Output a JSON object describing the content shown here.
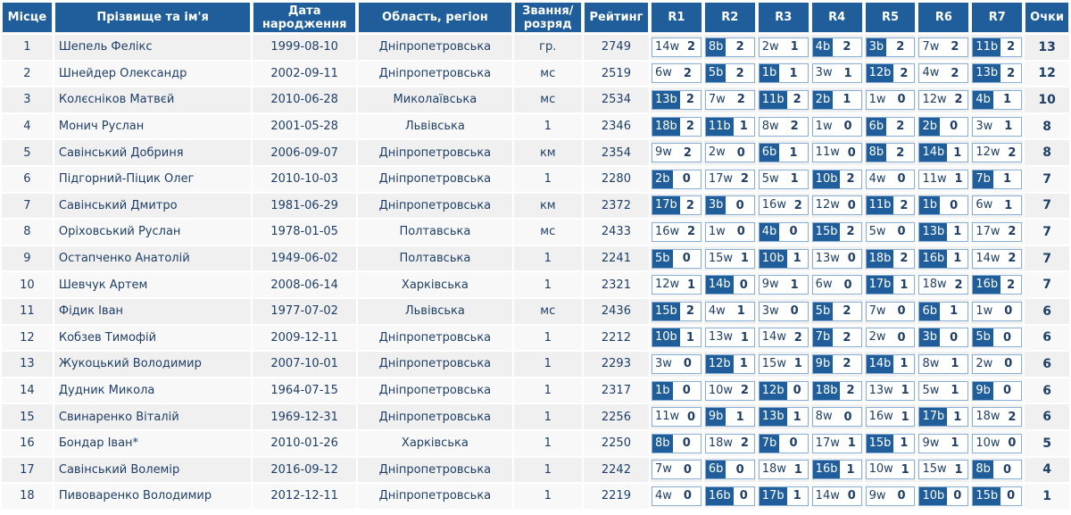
{
  "headers": {
    "place": "Місце",
    "name": "Прізвище та ім'я",
    "birth": "Дата народження",
    "region": "Область, регіон",
    "rank": "Звання/ розряд",
    "rating": "Рейтинг",
    "rounds": [
      "R1",
      "R2",
      "R3",
      "R4",
      "R5",
      "R6",
      "R7"
    ],
    "points": "Очки"
  },
  "rows": [
    {
      "place": "1",
      "name": "Шепель Фелікс",
      "birth": "1999-08-10",
      "region": "Дніпропетровська",
      "rank": "гр.",
      "rating": "2749",
      "points": "13",
      "rounds": [
        {
          "opp": "14w",
          "res": "2",
          "color": "w"
        },
        {
          "opp": "8b",
          "res": "2",
          "color": "b"
        },
        {
          "opp": "2w",
          "res": "1",
          "color": "w"
        },
        {
          "opp": "4b",
          "res": "2",
          "color": "b"
        },
        {
          "opp": "3b",
          "res": "2",
          "color": "b"
        },
        {
          "opp": "7w",
          "res": "2",
          "color": "w"
        },
        {
          "opp": "11b",
          "res": "2",
          "color": "b"
        }
      ]
    },
    {
      "place": "2",
      "name": "Шнейдер Олександр",
      "birth": "2002-09-11",
      "region": "Дніпропетровська",
      "rank": "мс",
      "rating": "2519",
      "points": "12",
      "rounds": [
        {
          "opp": "6w",
          "res": "2",
          "color": "w"
        },
        {
          "opp": "5b",
          "res": "2",
          "color": "b"
        },
        {
          "opp": "1b",
          "res": "1",
          "color": "b"
        },
        {
          "opp": "3w",
          "res": "1",
          "color": "w"
        },
        {
          "opp": "12b",
          "res": "2",
          "color": "b"
        },
        {
          "opp": "4w",
          "res": "2",
          "color": "w"
        },
        {
          "opp": "13b",
          "res": "2",
          "color": "b"
        }
      ]
    },
    {
      "place": "3",
      "name": "Колєсніков Матвєй",
      "birth": "2010-06-28",
      "region": "Миколаївська",
      "rank": "мс",
      "rating": "2534",
      "points": "10",
      "rounds": [
        {
          "opp": "13b",
          "res": "2",
          "color": "b"
        },
        {
          "opp": "7w",
          "res": "2",
          "color": "w"
        },
        {
          "opp": "11b",
          "res": "2",
          "color": "b"
        },
        {
          "opp": "2b",
          "res": "1",
          "color": "b"
        },
        {
          "opp": "1w",
          "res": "0",
          "color": "w"
        },
        {
          "opp": "12w",
          "res": "2",
          "color": "w"
        },
        {
          "opp": "4b",
          "res": "1",
          "color": "b"
        }
      ]
    },
    {
      "place": "4",
      "name": "Монич Руслан",
      "birth": "2001-05-28",
      "region": "Львівська",
      "rank": "1",
      "rating": "2346",
      "points": "8",
      "rounds": [
        {
          "opp": "18b",
          "res": "2",
          "color": "b"
        },
        {
          "opp": "11b",
          "res": "1",
          "color": "b"
        },
        {
          "opp": "8w",
          "res": "2",
          "color": "w"
        },
        {
          "opp": "1w",
          "res": "0",
          "color": "w"
        },
        {
          "opp": "6b",
          "res": "2",
          "color": "b"
        },
        {
          "opp": "2b",
          "res": "0",
          "color": "b"
        },
        {
          "opp": "3w",
          "res": "1",
          "color": "w"
        }
      ]
    },
    {
      "place": "5",
      "name": "Савінський Добриня",
      "birth": "2006-09-07",
      "region": "Дніпропетровська",
      "rank": "км",
      "rating": "2354",
      "points": "8",
      "rounds": [
        {
          "opp": "9w",
          "res": "2",
          "color": "w"
        },
        {
          "opp": "2w",
          "res": "0",
          "color": "w"
        },
        {
          "opp": "6b",
          "res": "1",
          "color": "b"
        },
        {
          "opp": "11w",
          "res": "0",
          "color": "w"
        },
        {
          "opp": "8b",
          "res": "2",
          "color": "b"
        },
        {
          "opp": "14b",
          "res": "1",
          "color": "b"
        },
        {
          "opp": "12w",
          "res": "2",
          "color": "w"
        }
      ]
    },
    {
      "place": "6",
      "name": "Підгорний-Піцик Олег",
      "birth": "2010-10-03",
      "region": "Дніпропетровська",
      "rank": "1",
      "rating": "2280",
      "points": "7",
      "rounds": [
        {
          "opp": "2b",
          "res": "0",
          "color": "b"
        },
        {
          "opp": "17w",
          "res": "2",
          "color": "w"
        },
        {
          "opp": "5w",
          "res": "1",
          "color": "w"
        },
        {
          "opp": "10b",
          "res": "2",
          "color": "b"
        },
        {
          "opp": "4w",
          "res": "0",
          "color": "w"
        },
        {
          "opp": "11w",
          "res": "1",
          "color": "w"
        },
        {
          "opp": "7b",
          "res": "1",
          "color": "b"
        }
      ]
    },
    {
      "place": "7",
      "name": "Савінський Дмитро",
      "birth": "1981-06-29",
      "region": "Дніпропетровська",
      "rank": "км",
      "rating": "2372",
      "points": "7",
      "rounds": [
        {
          "opp": "17b",
          "res": "2",
          "color": "b"
        },
        {
          "opp": "3b",
          "res": "0",
          "color": "b"
        },
        {
          "opp": "16w",
          "res": "2",
          "color": "w"
        },
        {
          "opp": "12w",
          "res": "0",
          "color": "w"
        },
        {
          "opp": "11b",
          "res": "2",
          "color": "b"
        },
        {
          "opp": "1b",
          "res": "0",
          "color": "b"
        },
        {
          "opp": "6w",
          "res": "1",
          "color": "w"
        }
      ]
    },
    {
      "place": "8",
      "name": "Оріховський Руслан",
      "birth": "1978-01-05",
      "region": "Полтавська",
      "rank": "мс",
      "rating": "2433",
      "points": "7",
      "rounds": [
        {
          "opp": "16w",
          "res": "2",
          "color": "w"
        },
        {
          "opp": "1w",
          "res": "0",
          "color": "w"
        },
        {
          "opp": "4b",
          "res": "0",
          "color": "b"
        },
        {
          "opp": "15b",
          "res": "2",
          "color": "b"
        },
        {
          "opp": "5w",
          "res": "0",
          "color": "w"
        },
        {
          "opp": "13b",
          "res": "1",
          "color": "b"
        },
        {
          "opp": "17w",
          "res": "2",
          "color": "w"
        }
      ]
    },
    {
      "place": "9",
      "name": "Остапченко Анатолій",
      "birth": "1949-06-02",
      "region": "Полтавська",
      "rank": "1",
      "rating": "2241",
      "points": "7",
      "rounds": [
        {
          "opp": "5b",
          "res": "0",
          "color": "b"
        },
        {
          "opp": "15w",
          "res": "1",
          "color": "w"
        },
        {
          "opp": "10b",
          "res": "1",
          "color": "b"
        },
        {
          "opp": "13w",
          "res": "0",
          "color": "w"
        },
        {
          "opp": "18b",
          "res": "2",
          "color": "b"
        },
        {
          "opp": "16b",
          "res": "1",
          "color": "b"
        },
        {
          "opp": "14w",
          "res": "2",
          "color": "w"
        }
      ]
    },
    {
      "place": "10",
      "name": "Шевчук Артем",
      "birth": "2008-06-14",
      "region": "Харківська",
      "rank": "1",
      "rating": "2321",
      "points": "7",
      "rounds": [
        {
          "opp": "12w",
          "res": "1",
          "color": "w"
        },
        {
          "opp": "14b",
          "res": "0",
          "color": "b"
        },
        {
          "opp": "9w",
          "res": "1",
          "color": "w"
        },
        {
          "opp": "6w",
          "res": "0",
          "color": "w"
        },
        {
          "opp": "17b",
          "res": "1",
          "color": "b"
        },
        {
          "opp": "18w",
          "res": "2",
          "color": "w"
        },
        {
          "opp": "16b",
          "res": "2",
          "color": "b"
        }
      ]
    },
    {
      "place": "11",
      "name": "Фідик Іван",
      "birth": "1977-07-02",
      "region": "Львівська",
      "rank": "мс",
      "rating": "2436",
      "points": "6",
      "rounds": [
        {
          "opp": "15b",
          "res": "2",
          "color": "b"
        },
        {
          "opp": "4w",
          "res": "1",
          "color": "w"
        },
        {
          "opp": "3w",
          "res": "0",
          "color": "w"
        },
        {
          "opp": "5b",
          "res": "2",
          "color": "b"
        },
        {
          "opp": "7w",
          "res": "0",
          "color": "w"
        },
        {
          "opp": "6b",
          "res": "1",
          "color": "b"
        },
        {
          "opp": "1w",
          "res": "0",
          "color": "w"
        }
      ]
    },
    {
      "place": "12",
      "name": "Кобзев Тимофій",
      "birth": "2009-12-11",
      "region": "Дніпропетровська",
      "rank": "1",
      "rating": "2212",
      "points": "6",
      "rounds": [
        {
          "opp": "10b",
          "res": "1",
          "color": "b"
        },
        {
          "opp": "13w",
          "res": "1",
          "color": "w"
        },
        {
          "opp": "14w",
          "res": "2",
          "color": "w"
        },
        {
          "opp": "7b",
          "res": "2",
          "color": "b"
        },
        {
          "opp": "2w",
          "res": "0",
          "color": "w"
        },
        {
          "opp": "3b",
          "res": "0",
          "color": "b"
        },
        {
          "opp": "5b",
          "res": "0",
          "color": "b"
        }
      ]
    },
    {
      "place": "13",
      "name": "Жукоцький Володимир",
      "birth": "2007-10-01",
      "region": "Дніпропетровська",
      "rank": "1",
      "rating": "2293",
      "points": "6",
      "rounds": [
        {
          "opp": "3w",
          "res": "0",
          "color": "w"
        },
        {
          "opp": "12b",
          "res": "1",
          "color": "b"
        },
        {
          "opp": "15w",
          "res": "1",
          "color": "w"
        },
        {
          "opp": "9b",
          "res": "2",
          "color": "b"
        },
        {
          "opp": "14b",
          "res": "1",
          "color": "b"
        },
        {
          "opp": "8w",
          "res": "1",
          "color": "w"
        },
        {
          "opp": "2w",
          "res": "0",
          "color": "w"
        }
      ]
    },
    {
      "place": "14",
      "name": "Дудник Микола",
      "birth": "1964-07-15",
      "region": "Дніпропетровська",
      "rank": "1",
      "rating": "2317",
      "points": "6",
      "rounds": [
        {
          "opp": "1b",
          "res": "0",
          "color": "b"
        },
        {
          "opp": "10w",
          "res": "2",
          "color": "w"
        },
        {
          "opp": "12b",
          "res": "0",
          "color": "b"
        },
        {
          "opp": "18b",
          "res": "2",
          "color": "b"
        },
        {
          "opp": "13w",
          "res": "1",
          "color": "w"
        },
        {
          "opp": "5w",
          "res": "1",
          "color": "w"
        },
        {
          "opp": "9b",
          "res": "0",
          "color": "b"
        }
      ]
    },
    {
      "place": "15",
      "name": "Свинаренко Віталій",
      "birth": "1969-12-31",
      "region": "Дніпропетровська",
      "rank": "1",
      "rating": "2256",
      "points": "6",
      "rounds": [
        {
          "opp": "11w",
          "res": "0",
          "color": "w"
        },
        {
          "opp": "9b",
          "res": "1",
          "color": "b"
        },
        {
          "opp": "13b",
          "res": "1",
          "color": "b"
        },
        {
          "opp": "8w",
          "res": "0",
          "color": "w"
        },
        {
          "opp": "16w",
          "res": "1",
          "color": "w"
        },
        {
          "opp": "17b",
          "res": "1",
          "color": "b"
        },
        {
          "opp": "18w",
          "res": "2",
          "color": "w"
        }
      ]
    },
    {
      "place": "16",
      "name": "Бондар Іван*",
      "birth": "2010-01-26",
      "region": "Харківська",
      "rank": "1",
      "rating": "2250",
      "points": "5",
      "rounds": [
        {
          "opp": "8b",
          "res": "0",
          "color": "b"
        },
        {
          "opp": "18w",
          "res": "2",
          "color": "w"
        },
        {
          "opp": "7b",
          "res": "0",
          "color": "b"
        },
        {
          "opp": "17w",
          "res": "1",
          "color": "w"
        },
        {
          "opp": "15b",
          "res": "1",
          "color": "b"
        },
        {
          "opp": "9w",
          "res": "1",
          "color": "w"
        },
        {
          "opp": "10w",
          "res": "0",
          "color": "w"
        }
      ]
    },
    {
      "place": "17",
      "name": "Савінський Волемір",
      "birth": "2016-09-12",
      "region": "Дніпропетровська",
      "rank": "1",
      "rating": "2242",
      "points": "4",
      "rounds": [
        {
          "opp": "7w",
          "res": "0",
          "color": "w"
        },
        {
          "opp": "6b",
          "res": "0",
          "color": "b"
        },
        {
          "opp": "18w",
          "res": "1",
          "color": "w"
        },
        {
          "opp": "16b",
          "res": "1",
          "color": "b"
        },
        {
          "opp": "10w",
          "res": "1",
          "color": "w"
        },
        {
          "opp": "15w",
          "res": "1",
          "color": "w"
        },
        {
          "opp": "8b",
          "res": "0",
          "color": "b"
        }
      ]
    },
    {
      "place": "18",
      "name": "Пивоваренко Володимир",
      "birth": "2012-12-11",
      "region": "Дніпропетровська",
      "rank": "1",
      "rating": "2219",
      "points": "1",
      "rounds": [
        {
          "opp": "4w",
          "res": "0",
          "color": "w"
        },
        {
          "opp": "16b",
          "res": "0",
          "color": "b"
        },
        {
          "opp": "17b",
          "res": "1",
          "color": "b"
        },
        {
          "opp": "14w",
          "res": "0",
          "color": "w"
        },
        {
          "opp": "9w",
          "res": "0",
          "color": "w"
        },
        {
          "opp": "10b",
          "res": "0",
          "color": "b"
        },
        {
          "opp": "15b",
          "res": "0",
          "color": "b"
        }
      ]
    }
  ],
  "colors": {
    "header_bg": "#1f5e9a",
    "header_text": "#ffffff",
    "black_piece_bg": "#1f5e9a",
    "cell_text": "#1f3f66",
    "row_odd": "#f0f0f0",
    "row_even": "#f8f8f8",
    "round_box_border": "#8aaed4"
  }
}
